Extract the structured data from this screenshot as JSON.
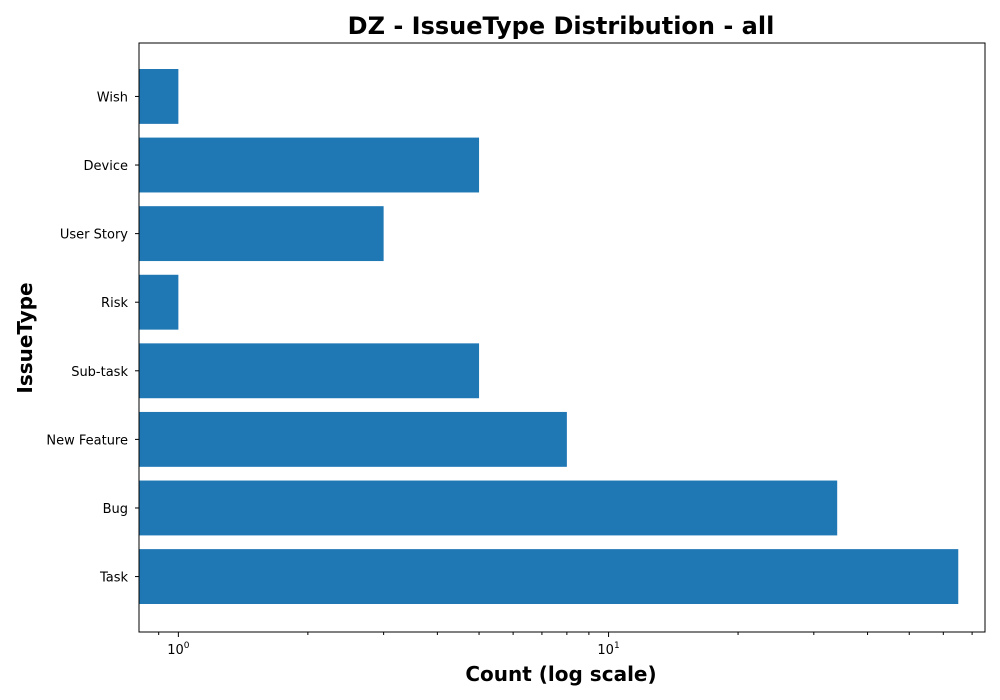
{
  "chart_data": {
    "type": "bar",
    "orientation": "horizontal",
    "title": "DZ - IssueType Distribution - all",
    "xlabel": "Count (log scale)",
    "ylabel": "IssueType",
    "x_scale": "log",
    "xlim": [
      0.81,
      75
    ],
    "grid": false,
    "categories": [
      "Task",
      "Bug",
      "New Feature",
      "Sub-task",
      "Risk",
      "User Story",
      "Device",
      "Wish"
    ],
    "values": [
      65,
      34,
      8,
      5,
      1,
      3,
      5,
      1
    ],
    "x_ticks": [
      {
        "base": "10",
        "exp": "0",
        "value": 1
      },
      {
        "base": "10",
        "exp": "1",
        "value": 10
      }
    ],
    "bar_color": "#1f77b4"
  }
}
